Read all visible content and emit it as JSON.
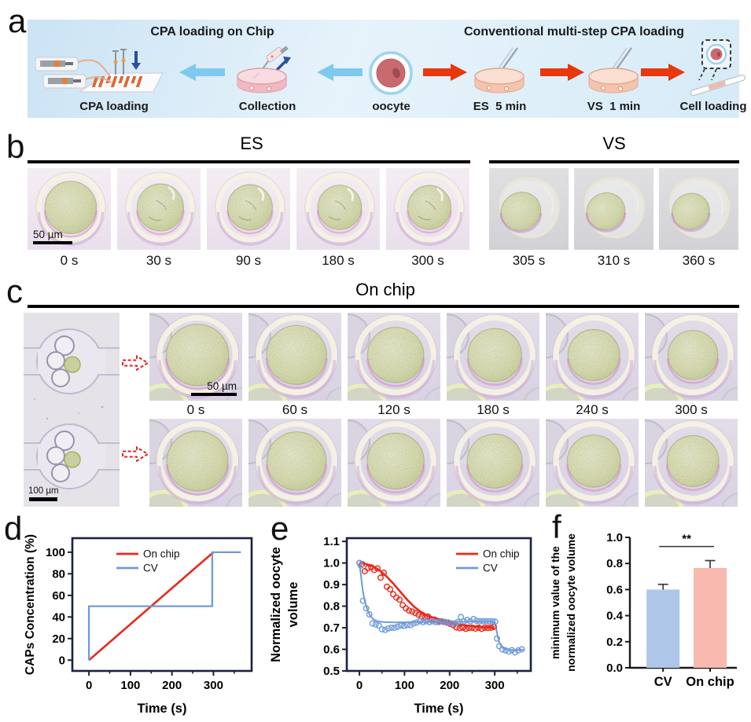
{
  "panels": {
    "a": "a",
    "b": "b",
    "c": "c",
    "d": "d",
    "e": "e",
    "f": "f"
  },
  "panel_a": {
    "left_title": "CPA loading on Chip",
    "right_title": "Conventional multi-step CPA loading",
    "labels": {
      "cpa_loading": "CPA loading",
      "collection": "Collection",
      "oocyte": "oocyte",
      "es": "ES  5 min",
      "vs": "VS  1 min",
      "cell_loading": "Cell loading"
    }
  },
  "panel_b": {
    "groups": [
      {
        "title": "ES",
        "tiles": [
          {
            "time": "0 s",
            "mode": "round",
            "shrink": 1.0
          },
          {
            "time": "30 s",
            "mode": "wrinkled",
            "shrink": 0.9
          },
          {
            "time": "90 s",
            "mode": "wrinkled",
            "shrink": 0.87
          },
          {
            "time": "180 s",
            "mode": "wrinkled",
            "shrink": 0.85
          },
          {
            "time": "300 s",
            "mode": "wrinkled",
            "shrink": 0.84
          }
        ]
      },
      {
        "title": "VS",
        "tiles": [
          {
            "time": "305 s",
            "mode": "collapsed",
            "shrink": 0.82
          },
          {
            "time": "310 s",
            "mode": "collapsed",
            "shrink": 0.79
          },
          {
            "time": "360 s",
            "mode": "collapsed",
            "shrink": 0.77
          }
        ]
      }
    ],
    "scale_bar": "50 µm"
  },
  "panel_c": {
    "title": "On chip",
    "times": [
      "0 s",
      "60 s",
      "120 s",
      "180 s",
      "240 s",
      "300 s"
    ],
    "row1_shrink": [
      1.0,
      0.96,
      0.9,
      0.86,
      0.83,
      0.8
    ],
    "row2_shrink": [
      0.98,
      0.95,
      0.91,
      0.88,
      0.85,
      0.83
    ],
    "scale_bar_zoom": "50 µm",
    "scale_bar_chip": "100 µm"
  },
  "chart_data": [
    {
      "id": "d",
      "type": "line",
      "xlabel": "Time (s)",
      "ylabel": "CAPs Concentration (%)",
      "xlim": [
        -40,
        392
      ],
      "ylim": [
        -10,
        113
      ],
      "xticks": [
        0,
        100,
        200,
        300
      ],
      "xtick_labels": [
        "0",
        "100",
        "200",
        "300"
      ],
      "xminor": [
        50,
        150,
        250,
        350
      ],
      "yticks": [
        0,
        20,
        40,
        60,
        80,
        100
      ],
      "ytick_labels": [
        "0",
        "20",
        "40",
        "60",
        "80",
        "100"
      ],
      "box": true,
      "spine_color": "#1c2143",
      "legend": {
        "pos": "top-left",
        "entries": [
          {
            "label": "On chip",
            "color": "#e8291c"
          },
          {
            "label": "CV",
            "color": "#6f9bd9"
          }
        ]
      },
      "series": [
        {
          "name": "On chip",
          "color": "#e8291c",
          "width": 2.6,
          "points": [
            [
              0,
              0
            ],
            [
              300,
              100
            ]
          ]
        },
        {
          "name": "CV",
          "color": "#6f9bd9",
          "width": 2.3,
          "points": [
            [
              0,
              0
            ],
            [
              0,
              50
            ],
            [
              297,
              50
            ],
            [
              297,
              100
            ],
            [
              366,
              100
            ]
          ]
        }
      ]
    },
    {
      "id": "e",
      "type": "line+scatter",
      "xlabel": "Time (s)",
      "ylabel_lines": [
        "Normalized oocyte",
        "volume"
      ],
      "xlim": [
        -28,
        380
      ],
      "ylim": [
        0.5,
        1.115
      ],
      "xticks": [
        0,
        100,
        200,
        300
      ],
      "xtick_labels": [
        "0",
        "100",
        "200",
        "300"
      ],
      "xminor": [
        50,
        150,
        250,
        350
      ],
      "yticks": [
        0.5,
        0.6,
        0.7,
        0.8,
        0.9,
        1.0,
        1.1
      ],
      "ytick_labels": [
        "0.5",
        "0.6",
        "0.7",
        "0.8",
        "0.9",
        "1.0",
        "1.1"
      ],
      "box": true,
      "spine_color": "#1c2143",
      "legend": {
        "pos": "top-right",
        "entries": [
          {
            "label": "On chip",
            "color": "#e8291c"
          },
          {
            "label": "CV",
            "color": "#6f9bd9"
          }
        ]
      },
      "series": [
        {
          "name": "On chip fit",
          "color": "#e8291c",
          "width": 2.6,
          "points": [
            [
              0,
              1.0
            ],
            [
              15,
              0.995
            ],
            [
              30,
              0.985
            ],
            [
              45,
              0.965
            ],
            [
              60,
              0.938
            ],
            [
              75,
              0.905
            ],
            [
              90,
              0.868
            ],
            [
              105,
              0.832
            ],
            [
              120,
              0.8
            ],
            [
              135,
              0.775
            ],
            [
              150,
              0.757
            ],
            [
              165,
              0.744
            ],
            [
              180,
              0.735
            ],
            [
              200,
              0.724
            ],
            [
              220,
              0.716
            ],
            [
              240,
              0.71
            ],
            [
              260,
              0.706
            ],
            [
              280,
              0.702
            ],
            [
              300,
              0.7
            ]
          ]
        },
        {
          "name": "CV fit",
          "color": "#6f9bd9",
          "width": 2.0,
          "points": [
            [
              0,
              1.0
            ],
            [
              4,
              0.93
            ],
            [
              8,
              0.865
            ],
            [
              13,
              0.815
            ],
            [
              18,
              0.78
            ],
            [
              25,
              0.752
            ],
            [
              32,
              0.738
            ],
            [
              40,
              0.73
            ],
            [
              55,
              0.726
            ],
            [
              80,
              0.725
            ],
            [
              120,
              0.726
            ],
            [
              160,
              0.727
            ],
            [
              200,
              0.727
            ],
            [
              250,
              0.728
            ],
            [
              296,
              0.728
            ],
            [
              300,
              0.726
            ],
            [
              303,
              0.7
            ],
            [
              306,
              0.665
            ],
            [
              310,
              0.632
            ],
            [
              315,
              0.612
            ],
            [
              322,
              0.602
            ],
            [
              335,
              0.598
            ],
            [
              350,
              0.597
            ],
            [
              365,
              0.598
            ]
          ]
        }
      ],
      "scatter": [
        {
          "name": "On chip",
          "color": "#e8291c",
          "points": [
            [
              0,
              1.0
            ],
            [
              6,
              0.995
            ],
            [
              12,
              0.962
            ],
            [
              19,
              0.976
            ],
            [
              26,
              0.98
            ],
            [
              33,
              0.968
            ],
            [
              40,
              0.975
            ],
            [
              47,
              0.932
            ],
            [
              54,
              0.955
            ],
            [
              61,
              0.89
            ],
            [
              68,
              0.878
            ],
            [
              75,
              0.855
            ],
            [
              82,
              0.84
            ],
            [
              89,
              0.83
            ],
            [
              96,
              0.805
            ],
            [
              103,
              0.79
            ],
            [
              110,
              0.78
            ],
            [
              117,
              0.775
            ],
            [
              124,
              0.768
            ],
            [
              131,
              0.76
            ],
            [
              138,
              0.752
            ],
            [
              145,
              0.748
            ],
            [
              152,
              0.752
            ],
            [
              159,
              0.74
            ],
            [
              166,
              0.738
            ],
            [
              173,
              0.732
            ],
            [
              180,
              0.73
            ],
            [
              187,
              0.727
            ],
            [
              194,
              0.724
            ],
            [
              201,
              0.718
            ],
            [
              208,
              0.712
            ],
            [
              215,
              0.702
            ],
            [
              222,
              0.698
            ],
            [
              229,
              0.7
            ],
            [
              236,
              0.695
            ],
            [
              243,
              0.699
            ],
            [
              250,
              0.7
            ],
            [
              257,
              0.696
            ],
            [
              264,
              0.7
            ],
            [
              271,
              0.695
            ],
            [
              278,
              0.7
            ],
            [
              285,
              0.699
            ],
            [
              292,
              0.7
            ],
            [
              298,
              0.704
            ]
          ]
        },
        {
          "name": "CV",
          "color": "#6f9bd9",
          "points": [
            [
              0,
              1.0
            ],
            [
              3,
              0.988
            ],
            [
              8,
              0.825
            ],
            [
              15,
              0.79
            ],
            [
              22,
              0.762
            ],
            [
              29,
              0.72
            ],
            [
              36,
              0.715
            ],
            [
              43,
              0.71
            ],
            [
              50,
              0.693
            ],
            [
              57,
              0.69
            ],
            [
              64,
              0.697
            ],
            [
              71,
              0.7
            ],
            [
              78,
              0.7
            ],
            [
              85,
              0.705
            ],
            [
              92,
              0.71
            ],
            [
              99,
              0.708
            ],
            [
              106,
              0.712
            ],
            [
              113,
              0.712
            ],
            [
              120,
              0.72
            ],
            [
              127,
              0.724
            ],
            [
              134,
              0.73
            ],
            [
              141,
              0.726
            ],
            [
              148,
              0.73
            ],
            [
              155,
              0.726
            ],
            [
              162,
              0.73
            ],
            [
              169,
              0.726
            ],
            [
              176,
              0.726
            ],
            [
              183,
              0.73
            ],
            [
              190,
              0.727
            ],
            [
              197,
              0.725
            ],
            [
              204,
              0.72
            ],
            [
              211,
              0.72
            ],
            [
              218,
              0.726
            ],
            [
              225,
              0.75
            ],
            [
              232,
              0.73
            ],
            [
              239,
              0.736
            ],
            [
              246,
              0.73
            ],
            [
              253,
              0.74
            ],
            [
              260,
              0.732
            ],
            [
              267,
              0.73
            ],
            [
              274,
              0.73
            ],
            [
              281,
              0.73
            ],
            [
              288,
              0.73
            ],
            [
              295,
              0.73
            ],
            [
              301,
              0.728
            ],
            [
              305,
              0.65
            ],
            [
              310,
              0.615
            ],
            [
              317,
              0.6
            ],
            [
              324,
              0.595
            ],
            [
              331,
              0.59
            ],
            [
              338,
              0.596
            ],
            [
              345,
              0.586
            ],
            [
              352,
              0.595
            ],
            [
              360,
              0.6
            ]
          ]
        }
      ]
    },
    {
      "id": "f",
      "type": "bar",
      "ylabel_lines": [
        "minimum value of the",
        "normalized oocyte volume"
      ],
      "ylim": [
        0,
        1.0
      ],
      "yticks": [
        0.0,
        0.2,
        0.4,
        0.6,
        0.8,
        1.0
      ],
      "ytick_labels": [
        "0.0",
        "0.2",
        "0.4",
        "0.6",
        "0.8",
        "1.0"
      ],
      "categories": [
        "CV",
        "On chip"
      ],
      "values": [
        0.6,
        0.765
      ],
      "errors": [
        0.04,
        0.057
      ],
      "bar_colors": [
        "#aec6e8",
        "#f8b9ae"
      ],
      "significance": "**"
    }
  ],
  "colors": {
    "red_arrow": "#e8380d",
    "blue_arrow": "#7fc9ef",
    "dark_blue": "#2b4ea0",
    "onchip_line": "#e8291c",
    "cv_line": "#6f9bd9",
    "bar_cv": "#aec6e8",
    "bar_onchip": "#f8b9ae"
  }
}
